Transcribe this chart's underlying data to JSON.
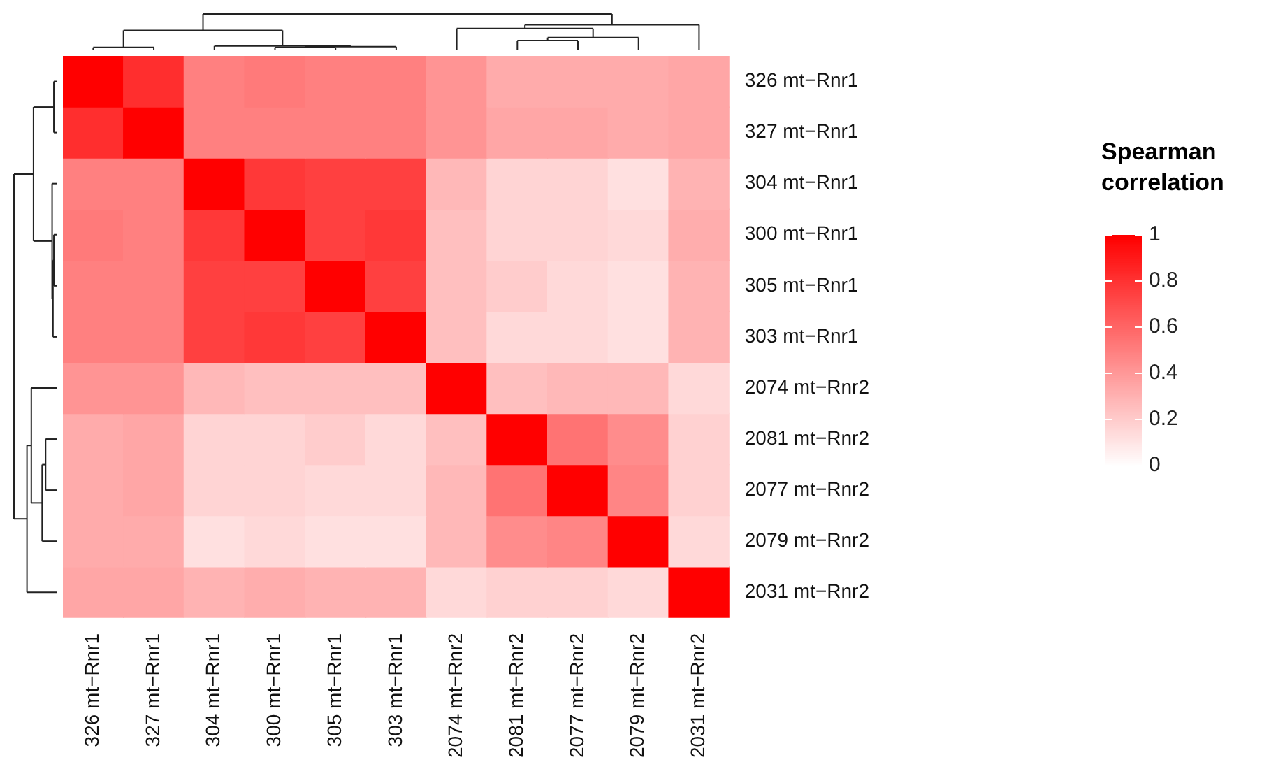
{
  "chart_data": {
    "type": "heatmap",
    "clabel": "Spearman correlation",
    "categories": [
      "326 mt−Rnr1",
      "327 mt−Rnr1",
      "304 mt−Rnr1",
      "300 mt−Rnr1",
      "305 mt−Rnr1",
      "303 mt−Rnr1",
      "2074 mt−Rnr2",
      "2081 mt−Rnr2",
      "2077 mt−Rnr2",
      "2079 mt−Rnr2",
      "2031 mt−Rnr2"
    ],
    "y_categories": [
      "326 mt−Rnr1",
      "327 mt−Rnr1",
      "304 mt−Rnr1",
      "300 mt−Rnr1",
      "305 mt−Rnr1",
      "303 mt−Rnr1",
      "2074 mt−Rnr2",
      "2081 mt−Rnr2",
      "2077 mt−Rnr2",
      "2079 mt−Rnr2",
      "2031 mt−Rnr2"
    ],
    "cells": [
      [
        1,
        0.82,
        0.5,
        0.52,
        0.5,
        0.5,
        0.42,
        0.33,
        0.33,
        0.33,
        0.35
      ],
      [
        0.82,
        1,
        0.5,
        0.5,
        0.5,
        0.5,
        0.42,
        0.35,
        0.35,
        0.33,
        0.35
      ],
      [
        0.5,
        0.5,
        1,
        0.78,
        0.75,
        0.75,
        0.28,
        0.17,
        0.17,
        0.12,
        0.3
      ],
      [
        0.52,
        0.5,
        0.78,
        1,
        0.75,
        0.78,
        0.25,
        0.17,
        0.17,
        0.15,
        0.32
      ],
      [
        0.5,
        0.5,
        0.75,
        0.75,
        1,
        0.75,
        0.25,
        0.2,
        0.15,
        0.12,
        0.3
      ],
      [
        0.5,
        0.5,
        0.75,
        0.78,
        0.75,
        1,
        0.25,
        0.15,
        0.15,
        0.12,
        0.3
      ],
      [
        0.42,
        0.42,
        0.28,
        0.25,
        0.25,
        0.25,
        1,
        0.25,
        0.28,
        0.28,
        0.15
      ],
      [
        0.33,
        0.35,
        0.17,
        0.17,
        0.2,
        0.15,
        0.25,
        1,
        0.55,
        0.45,
        0.18
      ],
      [
        0.33,
        0.35,
        0.17,
        0.17,
        0.15,
        0.15,
        0.28,
        0.55,
        1,
        0.48,
        0.18
      ],
      [
        0.33,
        0.33,
        0.12,
        0.15,
        0.12,
        0.12,
        0.28,
        0.45,
        0.48,
        1,
        0.15
      ],
      [
        0.35,
        0.35,
        0.3,
        0.32,
        0.3,
        0.3,
        0.15,
        0.18,
        0.18,
        0.15,
        1
      ]
    ],
    "clim": [
      0,
      1
    ],
    "cticks": [
      0,
      0.2,
      0.4,
      0.6,
      0.8,
      1
    ]
  }
}
